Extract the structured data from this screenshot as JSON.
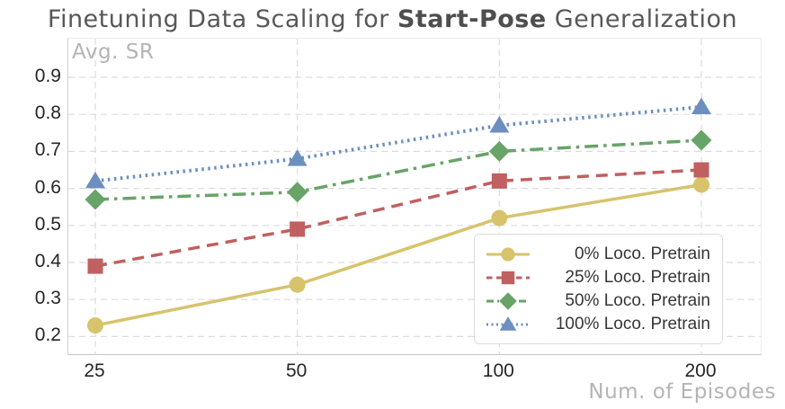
{
  "title": {
    "prefix": "Finetuning Data Scaling for ",
    "bold_segment": "Start-Pose",
    "suffix": " Generalization"
  },
  "chart_data": {
    "type": "line",
    "title": "Finetuning Data Scaling for Start-Pose Generalization",
    "xlabel": "Num. of Episodes",
    "ylabel": "Avg. SR",
    "x": [
      25,
      50,
      100,
      200
    ],
    "x_tick_labels": [
      "25",
      "50",
      "100",
      "200"
    ],
    "x_scale": "equally-spaced-categories",
    "yticks": [
      0.2,
      0.3,
      0.4,
      0.5,
      0.6,
      0.7,
      0.8,
      0.9
    ],
    "ylim": [
      0.15,
      1.0
    ],
    "grid": "dashed-both-axes",
    "legend_position": "lower right",
    "series": [
      {
        "name": "0% Loco. Pretrain",
        "values": [
          0.23,
          0.34,
          0.52,
          0.61
        ],
        "color": "#d6c36c",
        "marker": "circle",
        "linestyle": "solid"
      },
      {
        "name": "25% Loco. Pretrain",
        "values": [
          0.39,
          0.49,
          0.62,
          0.65
        ],
        "color": "#c06060",
        "marker": "square",
        "linestyle": "dashed"
      },
      {
        "name": "50% Loco. Pretrain",
        "values": [
          0.57,
          0.59,
          0.7,
          0.73
        ],
        "color": "#68a368",
        "marker": "diamond",
        "linestyle": "dashdot"
      },
      {
        "name": "100% Loco. Pretrain",
        "values": [
          0.62,
          0.68,
          0.77,
          0.82
        ],
        "color": "#6d8fbf",
        "marker": "triangle",
        "linestyle": "dotted"
      }
    ]
  },
  "colors": {
    "grid": "#dcdcdc",
    "tick_text": "#262626",
    "axis_label_text": "#b4b4b4",
    "title_text": "#585858",
    "legend_border": "#dcdcdc"
  }
}
